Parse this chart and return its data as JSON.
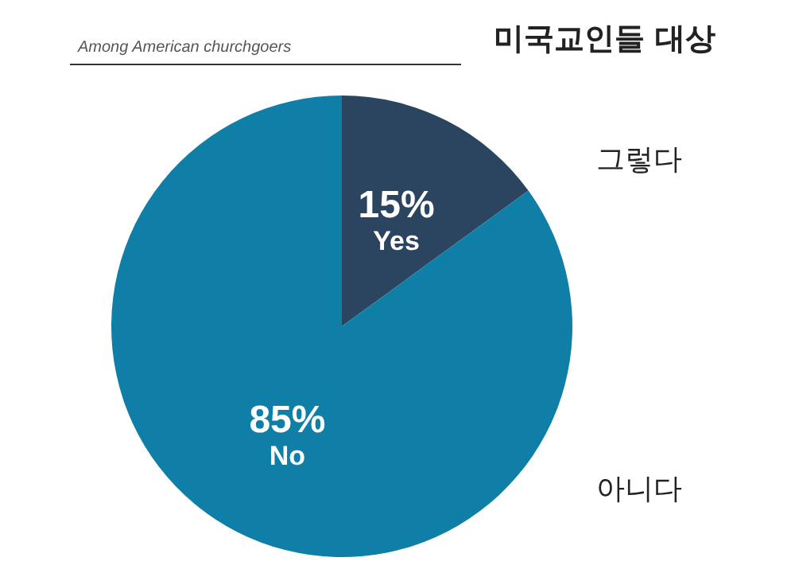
{
  "chart_data": {
    "type": "pie",
    "title": "미국교인들 대상",
    "subtitle": "Among American churchgoers",
    "categories": [
      "Yes",
      "No"
    ],
    "values": [
      15,
      85
    ],
    "colors": [
      "#2b4560",
      "#0f7fa8"
    ],
    "value_labels": [
      "15%",
      "85%"
    ],
    "annotations": [
      {
        "text": "그렇다",
        "x": "Yes"
      },
      {
        "text": "아니다",
        "x": "No"
      }
    ],
    "legend": false
  }
}
